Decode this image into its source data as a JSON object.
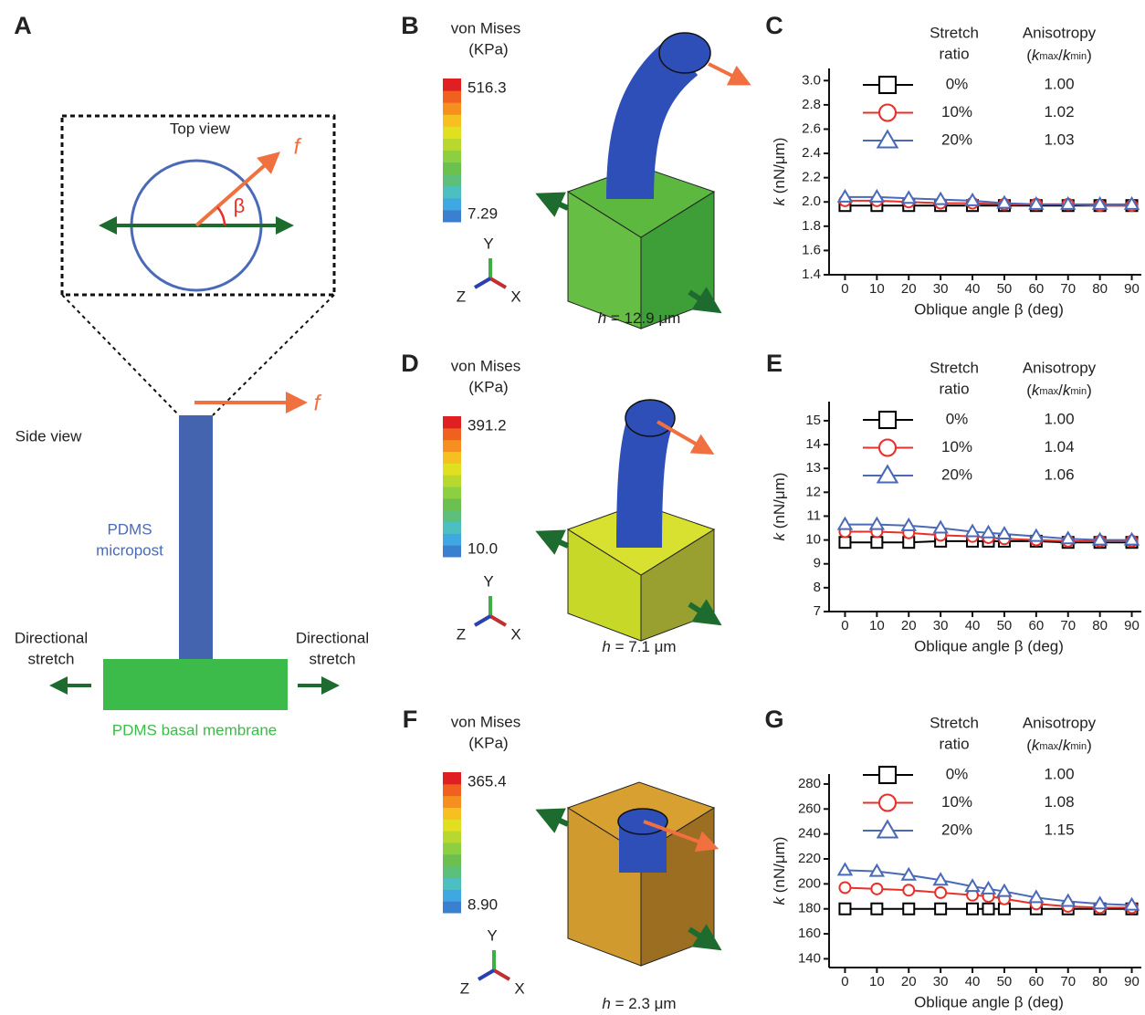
{
  "figure": {
    "panel_labels": [
      "A",
      "B",
      "C",
      "D",
      "E",
      "F",
      "G"
    ],
    "schematic": {
      "top_view": "Top view",
      "force": "f",
      "angle": "β",
      "side_force": "f",
      "side_view": "Side view",
      "post_label": [
        "PDMS",
        "micropost"
      ],
      "stretch_left": [
        "Directional",
        "stretch"
      ],
      "stretch_right": [
        "Directional",
        "stretch"
      ],
      "membrane": "PDMS basal membrane"
    },
    "simulations": [
      {
        "title": [
          "von Mises",
          "(KPa)"
        ],
        "max": "516.3",
        "min": "7.29",
        "axes": [
          "Y",
          "Z",
          "X"
        ],
        "height": [
          "h",
          " = 12.9 μm"
        ]
      },
      {
        "title": [
          "von Mises",
          "(KPa)"
        ],
        "max": "391.2",
        "min": "10.0",
        "axes": [
          "Y",
          "Z",
          "X"
        ],
        "height": [
          "h",
          " = 7.1 μm"
        ]
      },
      {
        "title": [
          "von Mises",
          "(KPa)"
        ],
        "max": "365.4",
        "min": "8.90",
        "axes": [
          "Y",
          "Z",
          "X"
        ],
        "height": [
          "h",
          " = 2.3 μm"
        ]
      }
    ]
  },
  "chart_data": [
    {
      "type": "line",
      "stretch_header": [
        "Stretch",
        "ratio"
      ],
      "anisotropy_header": "Anisotropy",
      "anisotropy_formula": [
        "(",
        "k",
        "max",
        "/",
        "k",
        "min",
        ")"
      ],
      "x_label": "Oblique angle β (deg)",
      "y_label": [
        "k",
        " (nN/μm)"
      ],
      "x": [
        0,
        10,
        20,
        30,
        40,
        50,
        60,
        70,
        80,
        90
      ],
      "xlim": [
        -5,
        93
      ],
      "xticks": [
        0,
        10,
        20,
        30,
        40,
        50,
        60,
        70,
        80,
        90
      ],
      "ylim": [
        1.4,
        3.1
      ],
      "yticks": [
        1.4,
        1.6,
        1.8,
        {
          "value": 2.0,
          "label": "2.0"
        },
        2.2,
        2.4,
        2.6,
        2.8,
        {
          "value": 3.0,
          "label": "3.0"
        }
      ],
      "series": [
        {
          "name": "0%",
          "color": "#000000",
          "marker": "square",
          "anisotropy": "1.00",
          "values": [
            1.97,
            1.97,
            1.97,
            1.97,
            1.97,
            1.97,
            1.97,
            1.97,
            1.97,
            1.97
          ]
        },
        {
          "name": "10%",
          "color": "#e8302a",
          "marker": "circle",
          "anisotropy": "1.02",
          "values": [
            2.01,
            2.01,
            2.0,
            1.99,
            1.99,
            1.98,
            1.98,
            1.98,
            1.97,
            1.97
          ]
        },
        {
          "name": "20%",
          "color": "#4a6ab8",
          "marker": "triangle",
          "anisotropy": "1.03",
          "values": [
            2.04,
            2.04,
            2.03,
            2.02,
            2.01,
            1.99,
            1.98,
            1.98,
            1.98,
            1.98
          ]
        }
      ]
    },
    {
      "type": "line",
      "stretch_header": [
        "Stretch",
        "ratio"
      ],
      "anisotropy_header": "Anisotropy",
      "anisotropy_formula": [
        "(",
        "k",
        "max",
        "/",
        "k",
        "min",
        ")"
      ],
      "x_label": "Oblique angle β (deg)",
      "y_label": [
        "k",
        " (nN/μm)"
      ],
      "x": [
        0,
        10,
        20,
        30,
        40,
        45,
        50,
        60,
        70,
        80,
        90
      ],
      "xlim": [
        -5,
        93
      ],
      "xticks": [
        0,
        10,
        20,
        30,
        40,
        50,
        60,
        70,
        80,
        90
      ],
      "ylim": [
        7,
        15.8
      ],
      "yticks": [
        7,
        8,
        9,
        10,
        11,
        12,
        13,
        14,
        15
      ],
      "series": [
        {
          "name": "0%",
          "color": "#000000",
          "marker": "square",
          "anisotropy": "1.00",
          "values": [
            9.9,
            9.9,
            9.9,
            9.95,
            9.95,
            9.95,
            9.95,
            9.95,
            9.9,
            9.9,
            9.9
          ]
        },
        {
          "name": "10%",
          "color": "#e8302a",
          "marker": "circle",
          "anisotropy": "1.04",
          "values": [
            10.35,
            10.35,
            10.3,
            10.2,
            10.15,
            10.1,
            10.05,
            10.0,
            9.95,
            9.95,
            9.95
          ]
        },
        {
          "name": "20%",
          "color": "#4a6ab8",
          "marker": "triangle",
          "anisotropy": "1.06",
          "values": [
            10.65,
            10.65,
            10.6,
            10.5,
            10.35,
            10.3,
            10.25,
            10.15,
            10.05,
            10.0,
            10.0
          ]
        }
      ]
    },
    {
      "type": "line",
      "stretch_header": [
        "Stretch",
        "ratio"
      ],
      "anisotropy_header": "Anisotropy",
      "anisotropy_formula": [
        "(",
        "k",
        "max",
        "/",
        "k",
        "min",
        ")"
      ],
      "x_label": "Oblique angle β (deg)",
      "y_label": [
        "k",
        " (nN/μm)"
      ],
      "x": [
        0,
        10,
        20,
        30,
        40,
        45,
        50,
        60,
        70,
        80,
        90
      ],
      "xlim": [
        -5,
        93
      ],
      "xticks": [
        0,
        10,
        20,
        30,
        40,
        50,
        60,
        70,
        80,
        90
      ],
      "ylim": [
        133,
        288
      ],
      "yticks": [
        140,
        160,
        180,
        200,
        220,
        240,
        260,
        280
      ],
      "series": [
        {
          "name": "0%",
          "color": "#000000",
          "marker": "square",
          "anisotropy": "1.00",
          "values": [
            180,
            180,
            180,
            180,
            180,
            180,
            180,
            180,
            180,
            180,
            180
          ]
        },
        {
          "name": "10%",
          "color": "#e8302a",
          "marker": "circle",
          "anisotropy": "1.08",
          "values": [
            197,
            196,
            195,
            193,
            191,
            190,
            188,
            184,
            182,
            181,
            181
          ]
        },
        {
          "name": "20%",
          "color": "#4a6ab8",
          "marker": "triangle",
          "anisotropy": "1.15",
          "values": [
            211,
            210,
            207,
            203,
            198,
            196,
            194,
            189,
            186,
            184,
            183
          ]
        }
      ]
    }
  ]
}
